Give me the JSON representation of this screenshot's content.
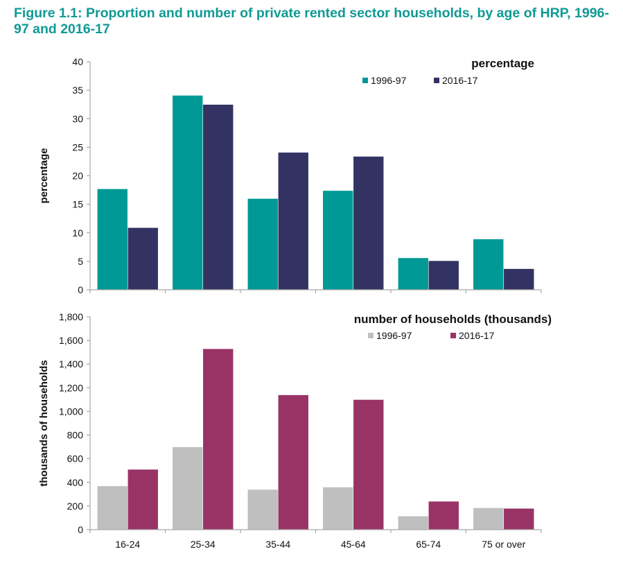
{
  "title": "Figure 1.1: Proportion and number of private rented sector households, by age of HRP, 1996-97 and 2016-17",
  "chart_data": [
    {
      "type": "bar",
      "title": "percentage",
      "xlabel": "",
      "ylabel": "percentage",
      "ylim": [
        0,
        40
      ],
      "yticks": [
        0,
        5,
        10,
        15,
        20,
        25,
        30,
        35,
        40
      ],
      "ytick_labels": [
        "0",
        "5",
        "10",
        "15",
        "20",
        "25",
        "30",
        "35",
        "40"
      ],
      "categories": [
        "16-24",
        "25-34",
        "35-44",
        "45-64",
        "65-74",
        "75 or over"
      ],
      "show_category_labels": false,
      "legend_position": "top-right",
      "grid": false,
      "series": [
        {
          "name": "1996-97",
          "color": "#009995",
          "values": [
            17.7,
            34.1,
            16.0,
            17.4,
            5.6,
            8.9
          ]
        },
        {
          "name": "2016-17",
          "color": "#333363",
          "values": [
            10.9,
            32.5,
            24.1,
            23.4,
            5.1,
            3.7
          ]
        }
      ]
    },
    {
      "type": "bar",
      "title": "number of households (thousands)",
      "xlabel": "",
      "ylabel": "thousands of households",
      "ylim": [
        0,
        1800
      ],
      "yticks": [
        0,
        200,
        400,
        600,
        800,
        1000,
        1200,
        1400,
        1600,
        1800
      ],
      "ytick_labels": [
        "0",
        "200",
        "400",
        "600",
        "800",
        "1,000",
        "1,200",
        "1,400",
        "1,600",
        "1,800"
      ],
      "categories": [
        "16-24",
        "25-34",
        "35-44",
        "45-64",
        "65-74",
        "75 or over"
      ],
      "show_category_labels": true,
      "legend_position": "top-right",
      "grid": false,
      "series": [
        {
          "name": "1996-97",
          "color": "#bfbfbf",
          "values": [
            370,
            700,
            340,
            360,
            115,
            185
          ]
        },
        {
          "name": "2016-17",
          "color": "#993366",
          "values": [
            510,
            1530,
            1140,
            1100,
            240,
            180
          ]
        }
      ]
    }
  ]
}
